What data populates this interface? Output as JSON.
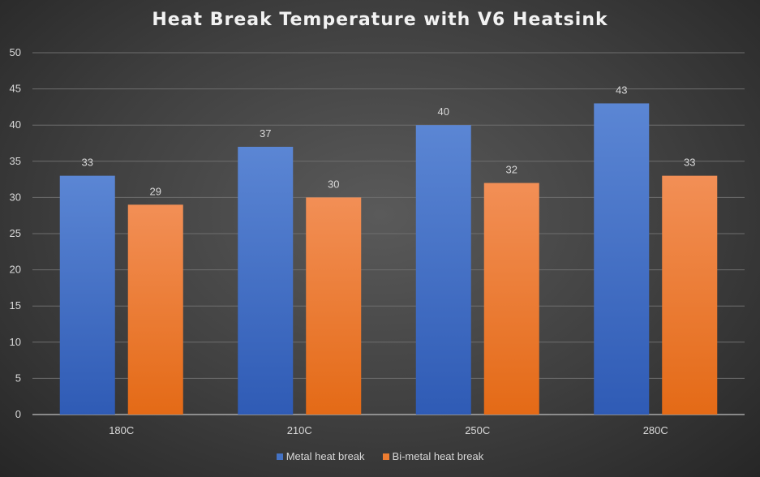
{
  "chart_data": {
    "type": "bar",
    "title": "Heat Break Temperature with V6 Heatsink",
    "categories": [
      "180C",
      "210C",
      "250C",
      "280C"
    ],
    "series": [
      {
        "name": "Metal heat break",
        "values": [
          33,
          37,
          40,
          43
        ],
        "color": "#4472c4"
      },
      {
        "name": "Bi-metal heat break",
        "values": [
          29,
          30,
          32,
          33
        ],
        "color": "#ed7d31"
      }
    ],
    "xlabel": "",
    "ylabel": "",
    "ylim": [
      0,
      50
    ],
    "yticks": [
      0,
      5,
      10,
      15,
      20,
      25,
      30,
      35,
      40,
      45,
      50
    ],
    "grid": true,
    "legend_position": "bottom",
    "data_labels": true
  }
}
